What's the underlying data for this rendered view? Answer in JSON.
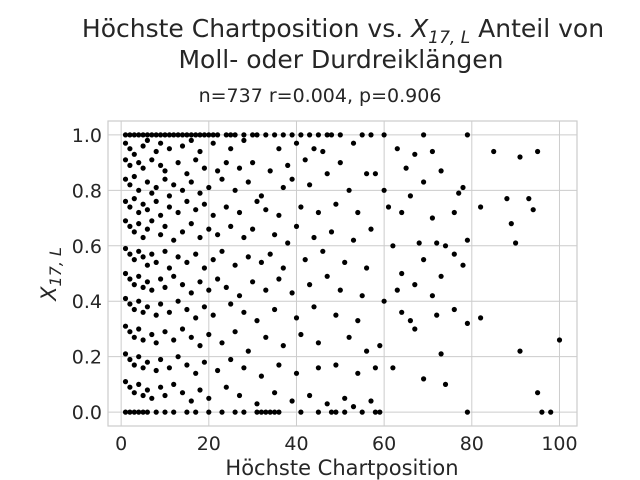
{
  "chart_data": {
    "type": "scatter",
    "title_line1_prefix": "Höchste Chartposition vs. ",
    "title_symbol": "X",
    "title_subscript": "17, L",
    "title_line1_suffix": " Anteil von",
    "title_line2": "Moll- oder Durdreiklängen",
    "subtitle": "n=737 r=0.004, p=0.906",
    "xlabel": "Höchste Chartposition",
    "ylabel_symbol": "X",
    "ylabel_subscript": "17, L",
    "xlim": [
      -3,
      104
    ],
    "ylim": [
      -0.05,
      1.05
    ],
    "xticks": [
      0,
      20,
      40,
      60,
      80,
      100
    ],
    "yticks": [
      0.0,
      0.2,
      0.4,
      0.6,
      0.8,
      1.0
    ],
    "xtick_labels": [
      "0",
      "20",
      "40",
      "60",
      "80",
      "100"
    ],
    "ytick_labels": [
      "0.0",
      "0.2",
      "0.4",
      "0.6",
      "0.8",
      "1.0"
    ],
    "grid": true,
    "marker_color": "#000000",
    "points": [
      [
        1,
        1.0
      ],
      [
        2,
        1.0
      ],
      [
        3,
        1.0
      ],
      [
        4,
        1.0
      ],
      [
        5,
        1.0
      ],
      [
        6,
        1.0
      ],
      [
        7,
        1.0
      ],
      [
        8,
        1.0
      ],
      [
        9,
        1.0
      ],
      [
        10,
        1.0
      ],
      [
        11,
        1.0
      ],
      [
        12,
        1.0
      ],
      [
        13,
        1.0
      ],
      [
        14,
        1.0
      ],
      [
        15,
        1.0
      ],
      [
        16,
        1.0
      ],
      [
        17,
        1.0
      ],
      [
        18,
        1.0
      ],
      [
        19,
        1.0
      ],
      [
        20,
        1.0
      ],
      [
        21,
        1.0
      ],
      [
        22,
        1.0
      ],
      [
        24,
        1.0
      ],
      [
        25,
        1.0
      ],
      [
        26,
        1.0
      ],
      [
        28,
        1.0
      ],
      [
        30,
        1.0
      ],
      [
        31,
        1.0
      ],
      [
        33,
        1.0
      ],
      [
        35,
        1.0
      ],
      [
        37,
        1.0
      ],
      [
        39,
        1.0
      ],
      [
        41,
        1.0
      ],
      [
        43,
        1.0
      ],
      [
        45,
        1.0
      ],
      [
        47,
        1.0
      ],
      [
        48,
        1.0
      ],
      [
        50,
        1.0
      ],
      [
        55,
        1.0
      ],
      [
        57,
        1.0
      ],
      [
        60,
        1.0
      ],
      [
        69,
        1.0
      ],
      [
        79,
        1.0
      ],
      [
        1,
        0.0
      ],
      [
        2,
        0.0
      ],
      [
        3,
        0.0
      ],
      [
        4,
        0.0
      ],
      [
        5,
        0.0
      ],
      [
        6,
        0.0
      ],
      [
        8,
        0.0
      ],
      [
        10,
        0.0
      ],
      [
        12,
        0.0
      ],
      [
        15,
        0.0
      ],
      [
        17,
        0.0
      ],
      [
        20,
        0.0
      ],
      [
        23,
        0.0
      ],
      [
        26,
        0.0
      ],
      [
        28,
        0.0
      ],
      [
        31,
        0.0
      ],
      [
        32,
        0.0
      ],
      [
        33,
        0.0
      ],
      [
        34,
        0.0
      ],
      [
        35,
        0.0
      ],
      [
        36,
        0.0
      ],
      [
        41,
        0.0
      ],
      [
        45,
        0.0
      ],
      [
        48,
        0.0
      ],
      [
        49,
        0.0
      ],
      [
        51,
        0.0
      ],
      [
        55,
        0.0
      ],
      [
        58,
        0.0
      ],
      [
        59,
        0.0
      ],
      [
        79,
        0.0
      ],
      [
        96,
        0.0
      ],
      [
        98,
        0.0
      ],
      [
        1,
        0.97
      ],
      [
        2,
        0.95
      ],
      [
        3,
        0.93
      ],
      [
        5,
        0.96
      ],
      [
        6,
        0.98
      ],
      [
        8,
        0.94
      ],
      [
        9,
        0.97
      ],
      [
        11,
        0.95
      ],
      [
        14,
        0.96
      ],
      [
        16,
        0.98
      ],
      [
        18,
        0.94
      ],
      [
        21,
        0.97
      ],
      [
        25,
        0.95
      ],
      [
        28,
        0.98
      ],
      [
        36,
        0.95
      ],
      [
        40,
        0.97
      ],
      [
        44,
        0.95
      ],
      [
        46,
        0.94
      ],
      [
        53,
        0.97
      ],
      [
        63,
        0.95
      ],
      [
        67,
        0.93
      ],
      [
        71,
        0.94
      ],
      [
        85,
        0.94
      ],
      [
        91,
        0.92
      ],
      [
        95,
        0.94
      ],
      [
        1,
        0.91
      ],
      [
        2,
        0.89
      ],
      [
        4,
        0.9
      ],
      [
        5,
        0.88
      ],
      [
        7,
        0.91
      ],
      [
        9,
        0.89
      ],
      [
        10,
        0.87
      ],
      [
        13,
        0.9
      ],
      [
        15,
        0.86
      ],
      [
        17,
        0.91
      ],
      [
        19,
        0.88
      ],
      [
        22,
        0.87
      ],
      [
        24,
        0.9
      ],
      [
        27,
        0.88
      ],
      [
        30,
        0.9
      ],
      [
        34,
        0.87
      ],
      [
        38,
        0.89
      ],
      [
        42,
        0.91
      ],
      [
        47,
        0.86
      ],
      [
        50,
        0.9
      ],
      [
        56,
        0.86
      ],
      [
        58,
        0.86
      ],
      [
        65,
        0.88
      ],
      [
        69,
        0.83
      ],
      [
        73,
        0.87
      ],
      [
        78,
        0.81
      ],
      [
        1,
        0.84
      ],
      [
        2,
        0.82
      ],
      [
        3,
        0.85
      ],
      [
        4,
        0.8
      ],
      [
        6,
        0.83
      ],
      [
        7,
        0.79
      ],
      [
        8,
        0.81
      ],
      [
        10,
        0.84
      ],
      [
        11,
        0.78
      ],
      [
        12,
        0.82
      ],
      [
        14,
        0.8
      ],
      [
        16,
        0.83
      ],
      [
        18,
        0.79
      ],
      [
        20,
        0.81
      ],
      [
        23,
        0.84
      ],
      [
        26,
        0.8
      ],
      [
        29,
        0.83
      ],
      [
        32,
        0.78
      ],
      [
        37,
        0.81
      ],
      [
        39,
        0.84
      ],
      [
        43,
        0.82
      ],
      [
        52,
        0.8
      ],
      [
        60,
        0.8
      ],
      [
        66,
        0.78
      ],
      [
        77,
        0.79
      ],
      [
        82,
        0.74
      ],
      [
        88,
        0.77
      ],
      [
        93,
        0.77
      ],
      [
        1,
        0.76
      ],
      [
        2,
        0.74
      ],
      [
        3,
        0.77
      ],
      [
        4,
        0.72
      ],
      [
        5,
        0.75
      ],
      [
        6,
        0.73
      ],
      [
        8,
        0.76
      ],
      [
        9,
        0.71
      ],
      [
        11,
        0.74
      ],
      [
        13,
        0.72
      ],
      [
        15,
        0.76
      ],
      [
        17,
        0.73
      ],
      [
        19,
        0.75
      ],
      [
        21,
        0.71
      ],
      [
        24,
        0.74
      ],
      [
        27,
        0.72
      ],
      [
        31,
        0.76
      ],
      [
        33,
        0.73
      ],
      [
        36,
        0.71
      ],
      [
        41,
        0.74
      ],
      [
        45,
        0.72
      ],
      [
        49,
        0.75
      ],
      [
        54,
        0.72
      ],
      [
        61,
        0.74
      ],
      [
        64,
        0.72
      ],
      [
        71,
        0.7
      ],
      [
        76,
        0.72
      ],
      [
        89,
        0.68
      ],
      [
        94,
        0.73
      ],
      [
        1,
        0.69
      ],
      [
        2,
        0.67
      ],
      [
        3,
        0.65
      ],
      [
        4,
        0.68
      ],
      [
        5,
        0.63
      ],
      [
        6,
        0.66
      ],
      [
        7,
        0.69
      ],
      [
        9,
        0.64
      ],
      [
        10,
        0.67
      ],
      [
        12,
        0.62
      ],
      [
        14,
        0.65
      ],
      [
        16,
        0.68
      ],
      [
        18,
        0.63
      ],
      [
        20,
        0.66
      ],
      [
        22,
        0.64
      ],
      [
        25,
        0.67
      ],
      [
        28,
        0.63
      ],
      [
        30,
        0.66
      ],
      [
        35,
        0.64
      ],
      [
        38,
        0.61
      ],
      [
        40,
        0.67
      ],
      [
        44,
        0.63
      ],
      [
        48,
        0.65
      ],
      [
        53,
        0.62
      ],
      [
        57,
        0.66
      ],
      [
        62,
        0.6
      ],
      [
        68,
        0.61
      ],
      [
        72,
        0.61
      ],
      [
        74,
        0.6
      ],
      [
        79,
        0.62
      ],
      [
        90,
        0.61
      ],
      [
        1,
        0.59
      ],
      [
        2,
        0.57
      ],
      [
        3,
        0.55
      ],
      [
        4,
        0.58
      ],
      [
        5,
        0.56
      ],
      [
        6,
        0.53
      ],
      [
        7,
        0.57
      ],
      [
        8,
        0.54
      ],
      [
        10,
        0.58
      ],
      [
        11,
        0.52
      ],
      [
        13,
        0.56
      ],
      [
        15,
        0.54
      ],
      [
        17,
        0.57
      ],
      [
        19,
        0.52
      ],
      [
        21,
        0.55
      ],
      [
        23,
        0.58
      ],
      [
        26,
        0.53
      ],
      [
        29,
        0.56
      ],
      [
        32,
        0.54
      ],
      [
        34,
        0.57
      ],
      [
        37,
        0.52
      ],
      [
        42,
        0.55
      ],
      [
        46,
        0.58
      ],
      [
        51,
        0.54
      ],
      [
        56,
        0.52
      ],
      [
        64,
        0.5
      ],
      [
        69,
        0.55
      ],
      [
        73,
        0.49
      ],
      [
        76,
        0.57
      ],
      [
        78,
        0.53
      ],
      [
        1,
        0.5
      ],
      [
        2,
        0.48
      ],
      [
        3,
        0.46
      ],
      [
        4,
        0.49
      ],
      [
        5,
        0.45
      ],
      [
        6,
        0.47
      ],
      [
        7,
        0.44
      ],
      [
        9,
        0.48
      ],
      [
        10,
        0.45
      ],
      [
        12,
        0.49
      ],
      [
        14,
        0.46
      ],
      [
        16,
        0.43
      ],
      [
        18,
        0.47
      ],
      [
        20,
        0.44
      ],
      [
        22,
        0.48
      ],
      [
        24,
        0.45
      ],
      [
        27,
        0.42
      ],
      [
        30,
        0.47
      ],
      [
        33,
        0.44
      ],
      [
        36,
        0.48
      ],
      [
        39,
        0.43
      ],
      [
        43,
        0.46
      ],
      [
        47,
        0.49
      ],
      [
        50,
        0.44
      ],
      [
        55,
        0.42
      ],
      [
        60,
        0.4
      ],
      [
        63,
        0.44
      ],
      [
        67,
        0.46
      ],
      [
        71,
        0.42
      ],
      [
        1,
        0.41
      ],
      [
        2,
        0.39
      ],
      [
        3,
        0.37
      ],
      [
        4,
        0.4
      ],
      [
        5,
        0.36
      ],
      [
        6,
        0.38
      ],
      [
        8,
        0.35
      ],
      [
        9,
        0.39
      ],
      [
        11,
        0.36
      ],
      [
        13,
        0.4
      ],
      [
        15,
        0.37
      ],
      [
        17,
        0.34
      ],
      [
        19,
        0.38
      ],
      [
        21,
        0.35
      ],
      [
        25,
        0.39
      ],
      [
        28,
        0.36
      ],
      [
        31,
        0.33
      ],
      [
        35,
        0.37
      ],
      [
        40,
        0.34
      ],
      [
        44,
        0.38
      ],
      [
        49,
        0.35
      ],
      [
        54,
        0.33
      ],
      [
        64,
        0.36
      ],
      [
        66,
        0.33
      ],
      [
        67,
        0.3
      ],
      [
        72,
        0.35
      ],
      [
        76,
        0.37
      ],
      [
        79,
        0.32
      ],
      [
        82,
        0.34
      ],
      [
        1,
        0.31
      ],
      [
        2,
        0.29
      ],
      [
        3,
        0.27
      ],
      [
        4,
        0.3
      ],
      [
        5,
        0.26
      ],
      [
        7,
        0.28
      ],
      [
        8,
        0.25
      ],
      [
        10,
        0.29
      ],
      [
        12,
        0.26
      ],
      [
        14,
        0.3
      ],
      [
        16,
        0.27
      ],
      [
        18,
        0.24
      ],
      [
        20,
        0.28
      ],
      [
        23,
        0.25
      ],
      [
        26,
        0.29
      ],
      [
        29,
        0.22
      ],
      [
        33,
        0.27
      ],
      [
        37,
        0.24
      ],
      [
        41,
        0.28
      ],
      [
        45,
        0.25
      ],
      [
        52,
        0.27
      ],
      [
        56,
        0.22
      ],
      [
        59,
        0.24
      ],
      [
        73,
        0.21
      ],
      [
        91,
        0.22
      ],
      [
        100,
        0.26
      ],
      [
        1,
        0.21
      ],
      [
        2,
        0.19
      ],
      [
        3,
        0.17
      ],
      [
        4,
        0.2
      ],
      [
        5,
        0.16
      ],
      [
        6,
        0.18
      ],
      [
        8,
        0.15
      ],
      [
        9,
        0.19
      ],
      [
        11,
        0.16
      ],
      [
        13,
        0.2
      ],
      [
        15,
        0.17
      ],
      [
        17,
        0.14
      ],
      [
        19,
        0.18
      ],
      [
        22,
        0.15
      ],
      [
        25,
        0.19
      ],
      [
        28,
        0.16
      ],
      [
        32,
        0.13
      ],
      [
        36,
        0.17
      ],
      [
        40,
        0.14
      ],
      [
        45,
        0.16
      ],
      [
        49,
        0.17
      ],
      [
        54,
        0.14
      ],
      [
        58,
        0.16
      ],
      [
        62,
        0.16
      ],
      [
        69,
        0.12
      ],
      [
        74,
        0.1
      ],
      [
        1,
        0.11
      ],
      [
        2,
        0.09
      ],
      [
        3,
        0.07
      ],
      [
        4,
        0.1
      ],
      [
        5,
        0.06
      ],
      [
        6,
        0.08
      ],
      [
        7,
        0.05
      ],
      [
        9,
        0.09
      ],
      [
        10,
        0.06
      ],
      [
        12,
        0.1
      ],
      [
        14,
        0.07
      ],
      [
        16,
        0.04
      ],
      [
        18,
        0.08
      ],
      [
        20,
        0.05
      ],
      [
        24,
        0.09
      ],
      [
        27,
        0.06
      ],
      [
        31,
        0.03
      ],
      [
        35,
        0.07
      ],
      [
        39,
        0.04
      ],
      [
        43,
        0.06
      ],
      [
        47,
        0.03
      ],
      [
        51,
        0.05
      ],
      [
        53,
        0.02
      ],
      [
        57,
        0.04
      ],
      [
        95,
        0.07
      ]
    ]
  }
}
